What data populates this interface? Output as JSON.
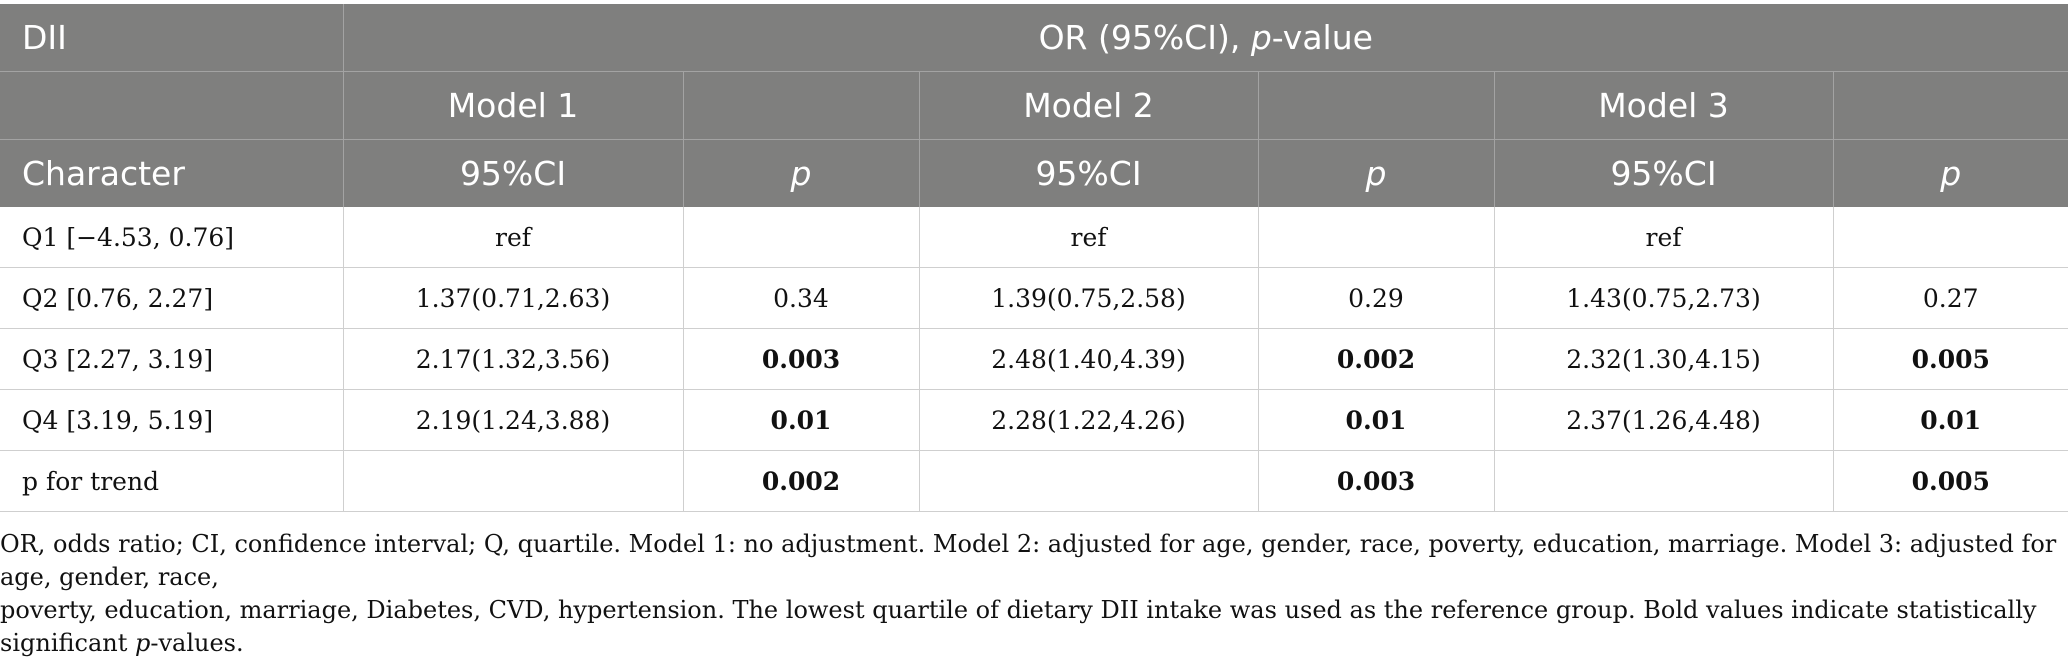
{
  "header": {
    "dii": "DII",
    "or_label_a": "OR (95%CI), ",
    "or_label_p": "p",
    "or_label_b": "-value",
    "models": [
      "Model 1",
      "Model 2",
      "Model 3"
    ],
    "character": "Character",
    "ci": "95%CI",
    "p": "p"
  },
  "rows": [
    {
      "label": "Q1 [−4.53, 0.76]",
      "m1_ci": "ref",
      "m1_p": "",
      "m2_ci": "ref",
      "m2_p": "",
      "m3_ci": "ref",
      "m3_p": ""
    },
    {
      "label": "Q2 [0.76, 2.27]",
      "m1_ci": "1.37(0.71,2.63)",
      "m1_p": "0.34",
      "m2_ci": "1.39(0.75,2.58)",
      "m2_p": "0.29",
      "m3_ci": "1.43(0.75,2.73)",
      "m3_p": "0.27"
    },
    {
      "label": "Q3 [2.27, 3.19]",
      "m1_ci": "2.17(1.32,3.56)",
      "m1_p": "0.003",
      "m2_ci": "2.48(1.40,4.39)",
      "m2_p": "0.002",
      "m3_ci": "2.32(1.30,4.15)",
      "m3_p": "0.005"
    },
    {
      "label": "Q4 [3.19, 5.19]",
      "m1_ci": "2.19(1.24,3.88)",
      "m1_p": "0.01",
      "m2_ci": "2.28(1.22,4.26)",
      "m2_p": "0.01",
      "m3_ci": "2.37(1.26,4.48)",
      "m3_p": "0.01"
    },
    {
      "label": "p for trend",
      "m1_ci": "",
      "m1_p": "0.002",
      "m2_ci": "",
      "m2_p": "0.003",
      "m3_ci": "",
      "m3_p": "0.005"
    }
  ],
  "footnote": {
    "line1": "OR, odds ratio; CI, confidence interval; Q, quartile. Model 1: no adjustment. Model 2: adjusted for age, gender, race, poverty, education, marriage. Model 3: adjusted for age, gender, race,",
    "line2a": "poverty, education, marriage, Diabetes, CVD, hypertension. The lowest quartile of dietary DII intake was used as the reference group. Bold values indicate statistically significant ",
    "line2p": "p",
    "line2b": "-values."
  },
  "colors": {
    "header_bg": "#7f7f7e",
    "header_text": "#ffffff",
    "grid": "#cfcfcf"
  }
}
